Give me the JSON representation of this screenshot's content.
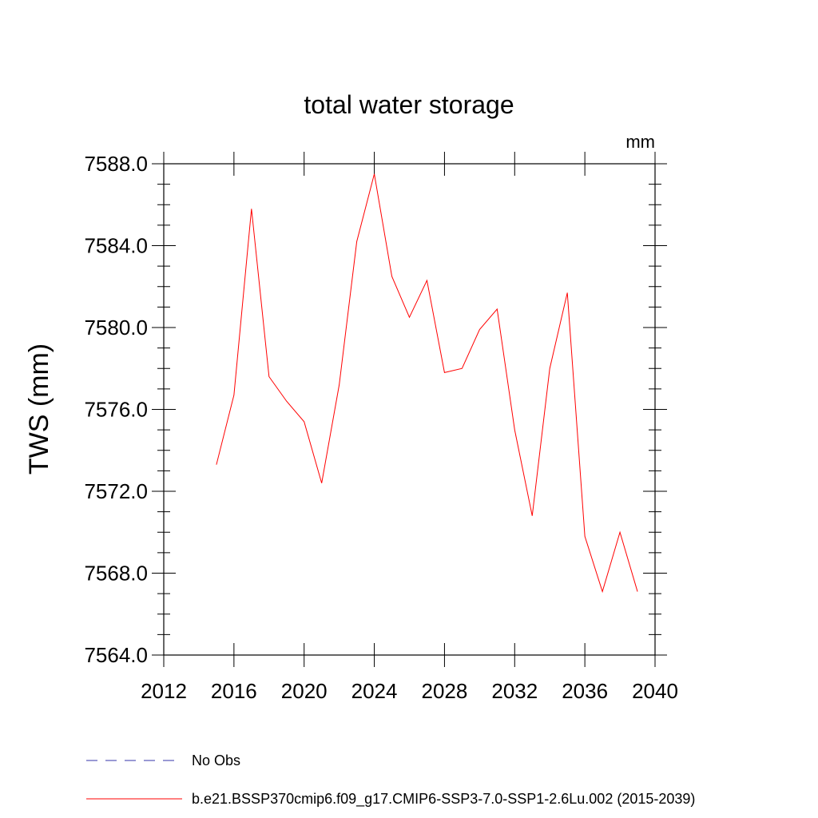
{
  "chart_data": {
    "type": "line",
    "title": "total water storage",
    "units_label": "mm",
    "xlabel": "",
    "ylabel": "TWS  (mm)",
    "xlim": [
      2012,
      2040
    ],
    "ylim": [
      7564.0,
      7588.0
    ],
    "x_ticks": [
      2012,
      2016,
      2020,
      2024,
      2028,
      2032,
      2036,
      2040
    ],
    "y_ticks": [
      7564.0,
      7568.0,
      7572.0,
      7576.0,
      7580.0,
      7584.0,
      7588.0
    ],
    "x_tick_labels": [
      "2012",
      "2016",
      "2020",
      "2024",
      "2028",
      "2032",
      "2036",
      "2040"
    ],
    "y_tick_labels": [
      "7564.0",
      "7568.0",
      "7572.0",
      "7576.0",
      "7580.0",
      "7584.0",
      "7588.0"
    ],
    "x": [
      2015,
      2016,
      2017,
      2018,
      2019,
      2020,
      2021,
      2022,
      2023,
      2024,
      2025,
      2026,
      2027,
      2028,
      2029,
      2030,
      2031,
      2032,
      2033,
      2034,
      2035,
      2036,
      2037,
      2038,
      2039
    ],
    "series": [
      {
        "name": "b.e21.BSSP370cmip6.f09_g17.CMIP6-SSP3-7.0-SSP1-2.6Lu.002 (2015-2039)",
        "color": "#ff0000",
        "style": "solid",
        "values": [
          7573.3,
          7576.7,
          7585.8,
          7577.6,
          7576.4,
          7575.4,
          7572.4,
          7577.2,
          7584.2,
          7587.5,
          7582.5,
          7580.5,
          7582.3,
          7577.8,
          7578.0,
          7579.9,
          7580.9,
          7575.0,
          7570.8,
          7578.0,
          7581.7,
          7569.8,
          7567.1,
          7570.0,
          7567.1
        ]
      }
    ],
    "legend": [
      {
        "label": "No Obs",
        "color": "#3333aa",
        "style": "dashed"
      },
      {
        "label": "b.e21.BSSP370cmip6.f09_g17.CMIP6-SSP3-7.0-SSP1-2.6Lu.002 (2015-2039)",
        "color": "#ff0000",
        "style": "solid"
      }
    ],
    "legend_placement": "bottom"
  }
}
